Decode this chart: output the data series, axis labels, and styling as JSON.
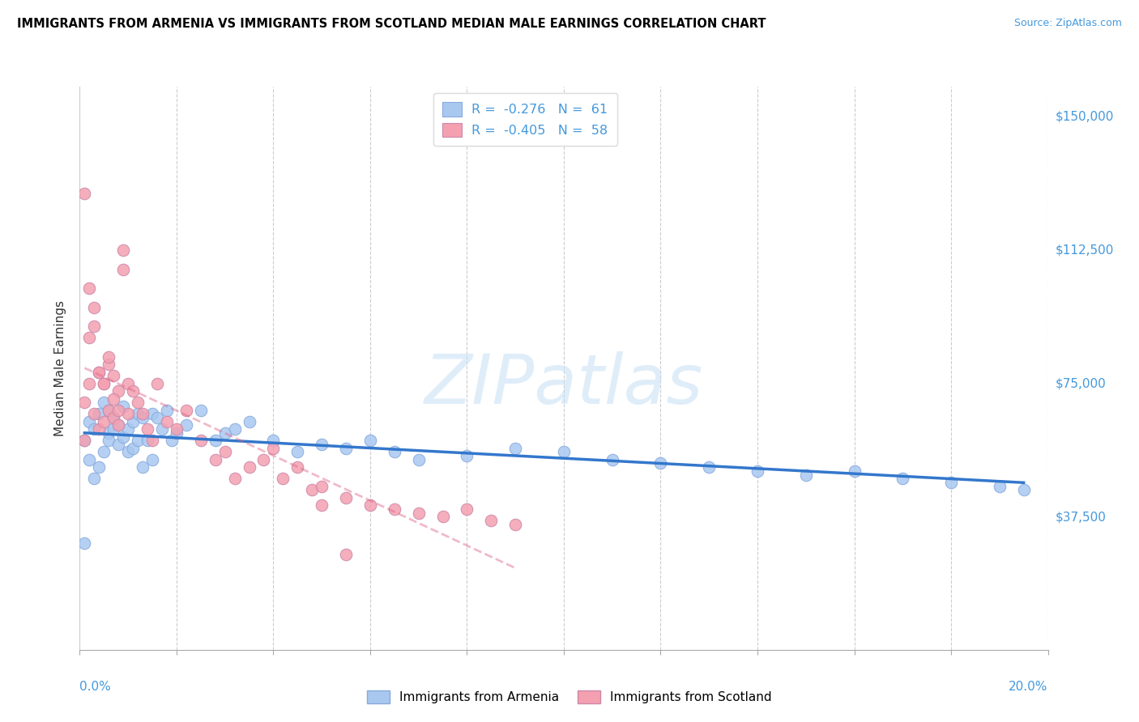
{
  "title": "IMMIGRANTS FROM ARMENIA VS IMMIGRANTS FROM SCOTLAND MEDIAN MALE EARNINGS CORRELATION CHART",
  "source": "Source: ZipAtlas.com",
  "ylabel": "Median Male Earnings",
  "yticks": [
    0,
    37500,
    75000,
    112500,
    150000
  ],
  "ytick_labels": [
    "",
    "$37,500",
    "$75,000",
    "$112,500",
    "$150,000"
  ],
  "xmin": 0.0,
  "xmax": 0.2,
  "ymin": 10000,
  "ymax": 158000,
  "watermark_text": "ZIPatlas",
  "armenia_color": "#a8c8f0",
  "scotland_color": "#f4a0b0",
  "armenia_line_color": "#3377cc",
  "scotland_line_color": "#dd6688",
  "armenia_R": -0.276,
  "armenia_N": 61,
  "scotland_R": -0.405,
  "scotland_N": 58,
  "armenia_x": [
    0.001,
    0.002,
    0.002,
    0.003,
    0.003,
    0.004,
    0.004,
    0.005,
    0.005,
    0.006,
    0.006,
    0.006,
    0.007,
    0.007,
    0.008,
    0.008,
    0.009,
    0.009,
    0.01,
    0.01,
    0.011,
    0.011,
    0.012,
    0.012,
    0.013,
    0.013,
    0.014,
    0.015,
    0.015,
    0.016,
    0.017,
    0.018,
    0.019,
    0.02,
    0.022,
    0.025,
    0.028,
    0.03,
    0.032,
    0.035,
    0.04,
    0.045,
    0.05,
    0.055,
    0.06,
    0.065,
    0.07,
    0.08,
    0.09,
    0.1,
    0.11,
    0.12,
    0.13,
    0.14,
    0.15,
    0.16,
    0.17,
    0.18,
    0.19,
    0.195,
    0.001
  ],
  "armenia_y": [
    65000,
    70000,
    60000,
    68000,
    55000,
    72000,
    58000,
    75000,
    62000,
    67000,
    73000,
    65000,
    71000,
    68000,
    69000,
    64000,
    74000,
    66000,
    68000,
    62000,
    70000,
    63000,
    65000,
    72000,
    71000,
    58000,
    65000,
    72000,
    60000,
    71000,
    68000,
    73000,
    65000,
    67000,
    69000,
    73000,
    65000,
    67000,
    68000,
    70000,
    65000,
    62000,
    64000,
    63000,
    65000,
    62000,
    60000,
    61000,
    63000,
    62000,
    60000,
    59000,
    58000,
    57000,
    56000,
    57000,
    55000,
    54000,
    53000,
    52000,
    38000
  ],
  "scotland_x": [
    0.001,
    0.001,
    0.002,
    0.002,
    0.003,
    0.003,
    0.004,
    0.004,
    0.005,
    0.005,
    0.006,
    0.006,
    0.007,
    0.007,
    0.008,
    0.008,
    0.009,
    0.009,
    0.01,
    0.01,
    0.011,
    0.012,
    0.013,
    0.014,
    0.015,
    0.016,
    0.018,
    0.02,
    0.022,
    0.025,
    0.028,
    0.03,
    0.032,
    0.035,
    0.038,
    0.04,
    0.042,
    0.045,
    0.048,
    0.05,
    0.055,
    0.06,
    0.065,
    0.07,
    0.075,
    0.08,
    0.085,
    0.09,
    0.001,
    0.002,
    0.003,
    0.004,
    0.005,
    0.006,
    0.007,
    0.008,
    0.05,
    0.055
  ],
  "scotland_y": [
    75000,
    65000,
    80000,
    105000,
    72000,
    100000,
    68000,
    83000,
    70000,
    80000,
    73000,
    85000,
    71000,
    82000,
    69000,
    78000,
    115000,
    110000,
    80000,
    72000,
    78000,
    75000,
    72000,
    68000,
    65000,
    80000,
    70000,
    68000,
    73000,
    65000,
    60000,
    62000,
    55000,
    58000,
    60000,
    63000,
    55000,
    58000,
    52000,
    53000,
    50000,
    48000,
    47000,
    46000,
    45000,
    47000,
    44000,
    43000,
    130000,
    92000,
    95000,
    83000,
    80000,
    87000,
    76000,
    73000,
    48000,
    35000
  ]
}
